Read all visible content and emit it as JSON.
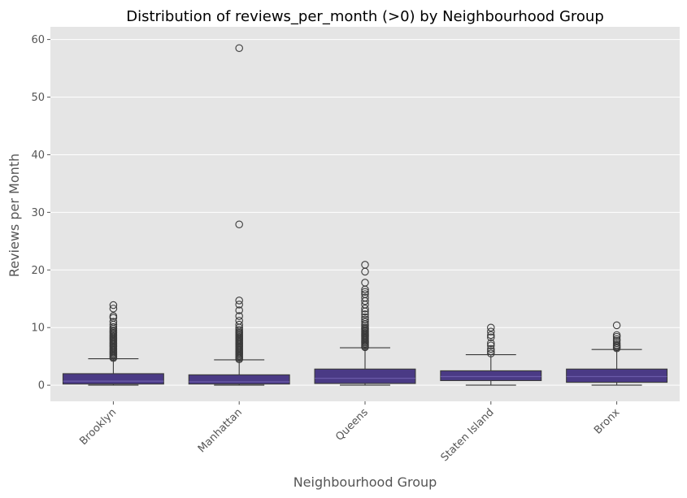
{
  "chart_data": {
    "type": "box",
    "title": "Distribution of reviews_per_month (>0) by Neighbourhood Group",
    "xlabel": "Neighbourhood Group",
    "ylabel": "Reviews per Month",
    "ylim": [
      -2.8,
      62.2
    ],
    "yticks": [
      0,
      10,
      20,
      30,
      40,
      50,
      60
    ],
    "grid": true,
    "colors": {
      "background": "#e5e5e5",
      "grid": "#ffffff",
      "box": "#4a3a85",
      "line": "#3a3a3a",
      "title": "#000000",
      "label": "#555555"
    },
    "categories": [
      "Brooklyn",
      "Manhattan",
      "Queens",
      "Staten Island",
      "Bronx"
    ],
    "boxes": [
      {
        "category": "Brooklyn",
        "whislo": 0.01,
        "q1": 0.2,
        "med": 0.7,
        "q3": 2.0,
        "whishi": 4.6,
        "outliers": [
          4.7,
          4.9,
          5.1,
          5.3,
          5.5,
          5.7,
          5.9,
          6.1,
          6.3,
          6.5,
          6.7,
          6.9,
          7.1,
          7.3,
          7.5,
          7.7,
          7.9,
          8.1,
          8.3,
          8.5,
          8.7,
          8.9,
          9.1,
          9.3,
          9.5,
          9.8,
          10.1,
          10.5,
          11.0,
          11.7,
          12.0,
          13.3,
          13.9
        ]
      },
      {
        "category": "Manhattan",
        "whislo": 0.01,
        "q1": 0.2,
        "med": 0.6,
        "q3": 1.8,
        "whishi": 4.4,
        "outliers": [
          4.5,
          4.7,
          4.9,
          5.1,
          5.3,
          5.5,
          5.7,
          5.9,
          6.1,
          6.3,
          6.5,
          6.7,
          6.9,
          7.1,
          7.3,
          7.5,
          7.7,
          7.9,
          8.1,
          8.3,
          8.5,
          8.7,
          8.9,
          9.1,
          9.3,
          9.6,
          10.0,
          10.5,
          11.2,
          12.0,
          13.0,
          14.0,
          14.7,
          27.9,
          58.5
        ]
      },
      {
        "category": "Queens",
        "whislo": 0.01,
        "q1": 0.3,
        "med": 1.2,
        "q3": 2.8,
        "whishi": 6.5,
        "outliers": [
          6.6,
          6.8,
          7.0,
          7.2,
          7.4,
          7.6,
          7.8,
          8.0,
          8.2,
          8.4,
          8.6,
          8.8,
          9.0,
          9.2,
          9.4,
          9.6,
          9.8,
          10.0,
          10.3,
          10.6,
          11.0,
          11.4,
          11.8,
          12.3,
          12.8,
          13.3,
          14.0,
          14.6,
          15.2,
          15.8,
          16.2,
          16.6,
          17.8,
          19.7,
          20.9
        ]
      },
      {
        "category": "Staten Island",
        "whislo": 0.01,
        "q1": 0.8,
        "med": 1.5,
        "q3": 2.5,
        "whishi": 5.3,
        "outliers": [
          5.5,
          5.9,
          6.3,
          6.9,
          7.3,
          8.3,
          8.7,
          9.3,
          10.0
        ]
      },
      {
        "category": "Bronx",
        "whislo": 0.01,
        "q1": 0.5,
        "med": 1.5,
        "q3": 2.8,
        "whishi": 6.2,
        "outliers": [
          6.4,
          6.6,
          6.8,
          7.0,
          7.3,
          7.7,
          8.0,
          8.4,
          8.7,
          10.4
        ]
      }
    ]
  }
}
